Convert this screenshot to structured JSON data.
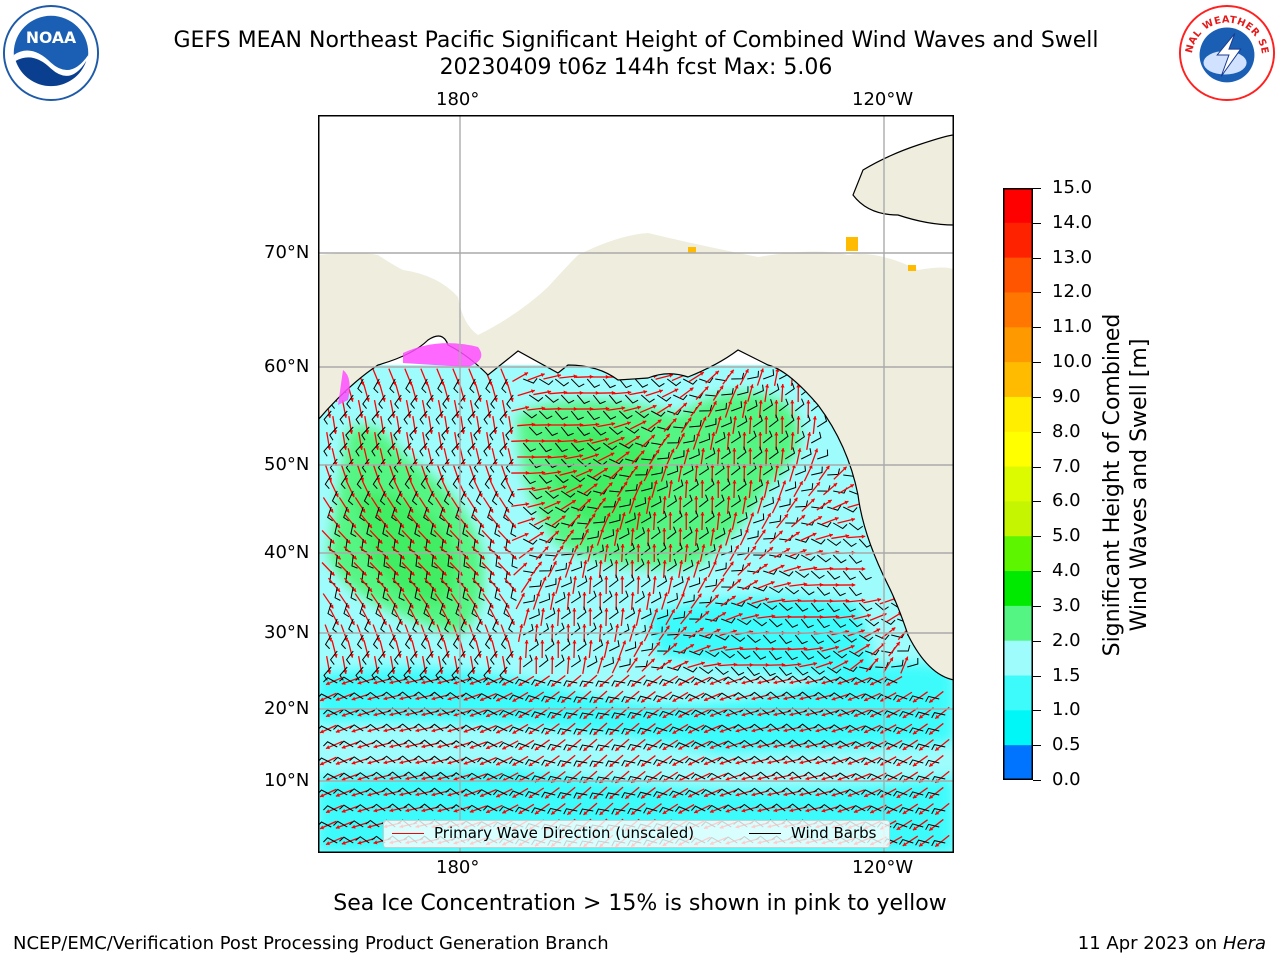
{
  "title": {
    "line1": "GEFS MEAN Northeast Pacific Significant Height of Combined Wind Waves and Swell",
    "line2": "20230409 t06z 144h fcst   Max: 5.06"
  },
  "logos": {
    "noaa_text": "NOAA",
    "nws_text": "NATIONAL WEATHER SERVICE"
  },
  "map": {
    "top_lon_labels": [
      "180°",
      "120°W"
    ],
    "bottom_lon_labels": [
      "180°",
      "120°W"
    ],
    "lat_labels": [
      "70°N",
      "60°N",
      "50°N",
      "40°N",
      "30°N",
      "20°N",
      "10°N"
    ],
    "colors": {
      "land": "#efedde",
      "ocean_base": "#9ffcfc",
      "ocean_low": "#3efbfb",
      "ocean_high": "#55f583",
      "peak": "#2fe64a",
      "wave_arrow": "#ff0000",
      "wind_barb": "#000000",
      "grid": "#aaaaaa"
    }
  },
  "colorbar": {
    "ticks": [
      "15.0",
      "14.0",
      "13.0",
      "12.0",
      "11.0",
      "10.0",
      "9.0",
      "8.0",
      "7.0",
      "6.0",
      "5.0",
      "4.0",
      "3.0",
      "2.0",
      "1.5",
      "1.0",
      "0.5",
      "0.0"
    ],
    "colors_top_to_bottom": [
      "#ff0000",
      "#ff2200",
      "#ff5500",
      "#ff7700",
      "#ff9900",
      "#ffbb00",
      "#ffee00",
      "#ffff00",
      "#dcfa00",
      "#c5f500",
      "#5ef500",
      "#00ea00",
      "#55f583",
      "#9ffcfc",
      "#3efbfb",
      "#00f7f7",
      "#0073ff",
      "#0000ff"
    ],
    "label_line1": "Significant Height of Combined",
    "label_line2": "Wind Waves and Swell [m]"
  },
  "legend": {
    "wave": "Primary Wave Direction (unscaled)",
    "wind": "Wind Barbs"
  },
  "ice_note": "Sea Ice Concentration > 15% is shown in pink to yellow",
  "footer": {
    "left": "NCEP/EMC/Verification Post Processing Product Generation Branch",
    "right_date": "11 Apr 2023 on ",
    "right_machine": "Hera"
  }
}
